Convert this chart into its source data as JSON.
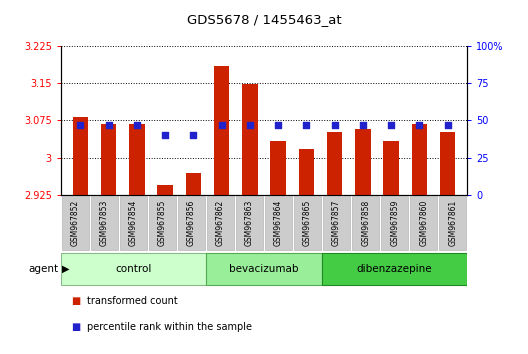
{
  "title": "GDS5678 / 1455463_at",
  "samples": [
    "GSM967852",
    "GSM967853",
    "GSM967854",
    "GSM967855",
    "GSM967856",
    "GSM967862",
    "GSM967863",
    "GSM967864",
    "GSM967865",
    "GSM967857",
    "GSM967858",
    "GSM967859",
    "GSM967860",
    "GSM967861"
  ],
  "transformed_counts": [
    3.082,
    3.068,
    3.068,
    2.945,
    2.968,
    3.185,
    3.148,
    3.033,
    3.017,
    3.052,
    3.057,
    3.033,
    3.068,
    3.052
  ],
  "percentile_ranks": [
    47,
    47,
    47,
    40,
    40,
    47,
    47,
    47,
    47,
    47,
    47,
    47,
    47,
    47
  ],
  "groups": [
    {
      "label": "control",
      "count": 5,
      "color": "#ccffcc",
      "border": "#88bb88"
    },
    {
      "label": "bevacizumab",
      "count": 4,
      "color": "#99ee99",
      "border": "#55aa55"
    },
    {
      "label": "dibenzazepine",
      "count": 5,
      "color": "#44cc44",
      "border": "#228822"
    }
  ],
  "ylim_left": [
    2.925,
    3.225
  ],
  "ylim_right": [
    0,
    100
  ],
  "yticks_left": [
    2.925,
    3.0,
    3.075,
    3.15,
    3.225
  ],
  "yticks_right": [
    0,
    25,
    50,
    75,
    100
  ],
  "ytick_labels_left": [
    "2.925",
    "3",
    "3.075",
    "3.15",
    "3.225"
  ],
  "ytick_labels_right": [
    "0",
    "25",
    "50",
    "75",
    "100%"
  ],
  "bar_color": "#cc2200",
  "dot_color": "#2222cc",
  "bar_width": 0.55,
  "agent_label": "agent",
  "legend_items": [
    {
      "color": "#cc2200",
      "label": "transformed count"
    },
    {
      "color": "#2222cc",
      "label": "percentile rank within the sample"
    }
  ],
  "gridline_color": "#000000",
  "sample_box_color": "#cccccc",
  "sample_box_edge": "#aaaaaa"
}
